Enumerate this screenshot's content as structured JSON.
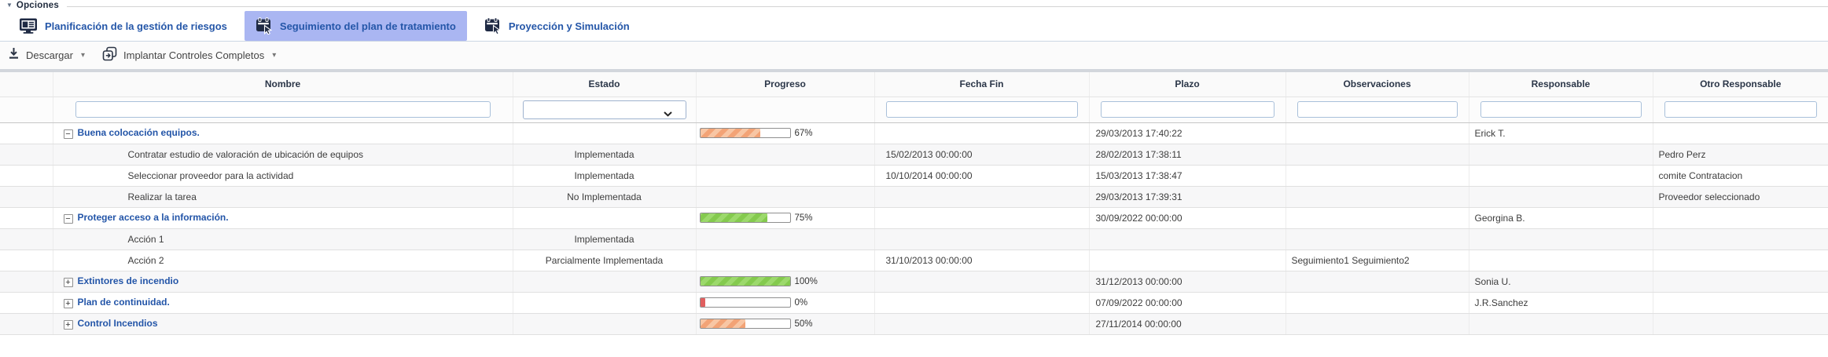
{
  "colors": {
    "accent_blue": "#2456a8",
    "tab_selected_bg": "#aab6f2",
    "progress_orange": "#f3a376",
    "progress_green": "#84ca4e",
    "progress_red": "#e05f5f"
  },
  "options_header": {
    "label": "Opciones",
    "collapse_icon": "▼"
  },
  "tabs": [
    {
      "label": "Planificación de la gestión de riesgos",
      "icon": "monitor-icon",
      "selected": false
    },
    {
      "label": "Seguimiento del plan de tratamiento",
      "icon": "calendar-cursor-icon",
      "selected": true
    },
    {
      "label": "Proyección y Simulación",
      "icon": "calendar-cursor-icon",
      "selected": false
    }
  ],
  "toolbar": {
    "download_label": "Descargar",
    "implant_label": "Implantar Controles Completos",
    "caret": "▾"
  },
  "table": {
    "columns": [
      "Nombre",
      "Estado",
      "Progreso",
      "Fecha Fin",
      "Plazo",
      "Observaciones",
      "Responsable",
      "Otro Responsable"
    ],
    "filters": {
      "nombre": "",
      "estado": "",
      "fecha_fin": "",
      "plazo": "",
      "observaciones": "",
      "responsable": "",
      "otro_responsable": ""
    },
    "icons": {
      "expander_minus": "−",
      "expander_plus": "+"
    },
    "rows": [
      {
        "type": "parent",
        "expander": "minus",
        "nombre": "Buena colocación equipos.",
        "estado": "",
        "progreso": 67,
        "progress_color": "orange",
        "fecha_fin": "",
        "plazo": "29/03/2013 17:40:22",
        "observaciones": "",
        "responsable": "Erick T.",
        "otro_responsable": ""
      },
      {
        "type": "child",
        "expander": null,
        "nombre": "Contratar estudio de valoración de ubicación de equipos",
        "estado": "Implementada",
        "progreso": null,
        "progress_color": null,
        "fecha_fin": "15/02/2013 00:00:00",
        "plazo": "28/02/2013 17:38:11",
        "observaciones": "",
        "responsable": "",
        "otro_responsable": "Pedro Perz"
      },
      {
        "type": "child",
        "expander": null,
        "nombre": "Seleccionar proveedor para la actividad",
        "estado": "Implementada",
        "progreso": null,
        "progress_color": null,
        "fecha_fin": "10/10/2014 00:00:00",
        "plazo": "15/03/2013 17:38:47",
        "observaciones": "",
        "responsable": "",
        "otro_responsable": "comite Contratacion"
      },
      {
        "type": "child",
        "expander": null,
        "nombre": "Realizar la tarea",
        "estado": "No Implementada",
        "progreso": null,
        "progress_color": null,
        "fecha_fin": "",
        "plazo": "29/03/2013 17:39:31",
        "observaciones": "",
        "responsable": "",
        "otro_responsable": "Proveedor seleccionado"
      },
      {
        "type": "parent",
        "expander": "minus",
        "nombre": "Proteger acceso a la información.",
        "estado": "",
        "progreso": 75,
        "progress_color": "green",
        "fecha_fin": "",
        "plazo": "30/09/2022 00:00:00",
        "observaciones": "",
        "responsable": "Georgina B.",
        "otro_responsable": ""
      },
      {
        "type": "child",
        "expander": null,
        "nombre": "Acción 1",
        "estado": "Implementada",
        "progreso": null,
        "progress_color": null,
        "fecha_fin": "",
        "plazo": "",
        "observaciones": "",
        "responsable": "",
        "otro_responsable": ""
      },
      {
        "type": "child",
        "expander": null,
        "nombre": "Acción 2",
        "estado": "Parcialmente Implementada",
        "progreso": null,
        "progress_color": null,
        "fecha_fin": "31/10/2013 00:00:00",
        "plazo": "",
        "observaciones": "Seguimiento1 Seguimiento2",
        "responsable": "",
        "otro_responsable": ""
      },
      {
        "type": "parent",
        "expander": "plus",
        "nombre": "Extintores de incendio",
        "estado": "",
        "progreso": 100,
        "progress_color": "green",
        "fecha_fin": "",
        "plazo": "31/12/2013 00:00:00",
        "observaciones": "",
        "responsable": "Sonia U.",
        "otro_responsable": ""
      },
      {
        "type": "parent",
        "expander": "plus",
        "nombre": "Plan de continuidad.",
        "estado": "",
        "progreso": 0,
        "progress_color": "red",
        "fecha_fin": "",
        "plazo": "07/09/2022 00:00:00",
        "observaciones": "",
        "responsable": "J.R.Sanchez",
        "otro_responsable": ""
      },
      {
        "type": "parent",
        "expander": "plus",
        "nombre": "Control Incendios",
        "estado": "",
        "progreso": 50,
        "progress_color": "orange",
        "fecha_fin": "",
        "plazo": "27/11/2014 00:00:00",
        "observaciones": "",
        "responsable": "",
        "otro_responsable": ""
      }
    ]
  }
}
